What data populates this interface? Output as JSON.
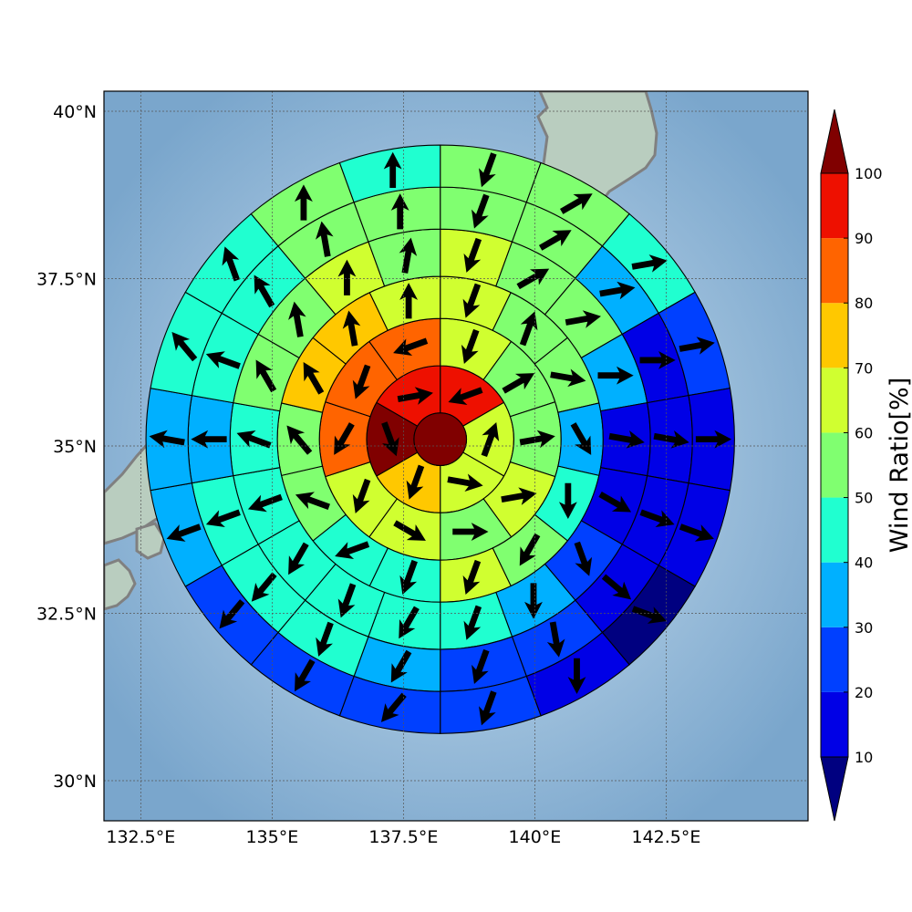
{
  "map": {
    "lon_range": [
      131.8,
      145.2
    ],
    "lat_range": [
      29.4,
      40.3
    ],
    "center": {
      "lon": 138.2,
      "lat": 35.1
    },
    "outer_radius_lon": 5.6,
    "lon_ticks": [
      {
        "value": 132.5,
        "label": "132.5°E"
      },
      {
        "value": 135,
        "label": "135°E"
      },
      {
        "value": 137.5,
        "label": "137.5°E"
      },
      {
        "value": 140,
        "label": "140°E"
      },
      {
        "value": 142.5,
        "label": "142.5°E"
      }
    ],
    "lat_ticks": [
      {
        "value": 40,
        "label": "40°N"
      },
      {
        "value": 37.5,
        "label": "37.5°N"
      },
      {
        "value": 35,
        "label": "35°N"
      },
      {
        "value": 32.5,
        "label": "32.5°N"
      },
      {
        "value": 30,
        "label": "30°N"
      }
    ],
    "colors": {
      "ocean_light": "#cfe3f2",
      "ocean_dark": "#7aa6cc",
      "land": "#b9cdbf",
      "coastline": "#808080"
    }
  },
  "colorbar": {
    "title": "Wind Ratio[%]",
    "levels": [
      10,
      20,
      30,
      40,
      50,
      60,
      70,
      80,
      90,
      100
    ],
    "labels": [
      "10",
      "20",
      "30",
      "40",
      "50",
      "60",
      "70",
      "80",
      "90",
      "100"
    ],
    "under_color": "#000080",
    "over_color": "#800000",
    "bin_colors": [
      "#0000e6",
      "#0040ff",
      "#00b0ff",
      "#20ffd0",
      "#80ff70",
      "#d0ff30",
      "#ffc800",
      "#ff6400",
      "#ee1000"
    ]
  },
  "chart_data": {
    "type": "polar-sector-map",
    "center_value": 100,
    "rings": [
      {
        "inner_deg": 0.5,
        "outer_deg": 1.4,
        "values": [
          95,
          65,
          65,
          75,
          100,
          95
        ]
      },
      {
        "inner_deg": 1.4,
        "outer_deg": 2.3,
        "values": [
          65,
          55,
          55,
          65,
          55,
          65,
          65,
          85,
          85,
          85
        ]
      },
      {
        "inner_deg": 2.3,
        "outer_deg": 3.1,
        "values": [
          65,
          55,
          55,
          35,
          45,
          55,
          65,
          45,
          45,
          55,
          55,
          75,
          75,
          65
        ]
      },
      {
        "inner_deg": 3.1,
        "outer_deg": 4.0,
        "values": [
          65,
          55,
          55,
          35,
          15,
          15,
          25,
          35,
          45,
          45,
          45,
          45,
          45,
          45,
          55,
          55,
          65,
          55
        ]
      },
      {
        "inner_deg": 4.0,
        "outer_deg": 4.8,
        "values": [
          55,
          55,
          35,
          15,
          15,
          15,
          15,
          25,
          25,
          35,
          45,
          45,
          45,
          35,
          45,
          45,
          55,
          55
        ]
      },
      {
        "inner_deg": 4.8,
        "outer_deg": 5.6,
        "values": [
          55,
          55,
          45,
          25,
          15,
          15,
          5,
          15,
          25,
          25,
          25,
          25,
          35,
          35,
          45,
          45,
          55,
          45
        ]
      }
    ],
    "arrows_deg": [
      [
        250,
        20,
        100,
        200,
        160,
        80
      ],
      [
        200,
        60,
        80,
        80,
        90,
        120,
        200,
        210,
        200,
        250
      ],
      [
        200,
        20,
        100,
        150,
        180,
        210,
        200,
        200,
        250,
        290,
        320,
        330,
        350,
        0
      ],
      [
        200,
        60,
        80,
        90,
        100,
        120,
        160,
        180,
        200,
        210,
        200,
        210,
        250,
        290,
        330,
        350,
        0,
        10
      ],
      [
        200,
        60,
        80,
        90,
        100,
        110,
        130,
        170,
        200,
        210,
        200,
        220,
        250,
        270,
        290,
        330,
        350,
        0
      ],
      [
        200,
        60,
        80,
        80,
        90,
        110,
        110,
        180,
        200,
        220,
        210,
        220,
        250,
        280,
        320,
        340,
        360,
        0
      ]
    ]
  }
}
